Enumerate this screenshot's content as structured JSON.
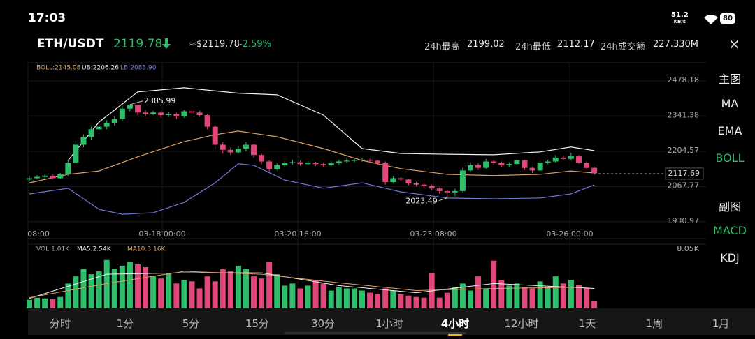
{
  "status": {
    "time": "17:03",
    "speed": "51.2",
    "speed_unit": "KB/s",
    "battery": "80"
  },
  "header": {
    "pair": "ETH/USDT",
    "price": "2119.78",
    "usd": "≈$2119.78",
    "change": "-2.59%",
    "stats": [
      {
        "label": "24h最高",
        "value": "2199.02"
      },
      {
        "label": "24h最低",
        "value": "2112.17"
      },
      {
        "label": "24h成交额",
        "value": "227.330M"
      }
    ]
  },
  "chart": {
    "boll_legend": [
      "BOLL:2145.08",
      "UB:2206.26",
      "LB:2083.90"
    ],
    "ylim": [
      1871,
      2559
    ],
    "yticks": [
      2478.18,
      2341.38,
      2204.57,
      2067.77,
      1930.97
    ],
    "last_price": 2117.69,
    "high_label": "2385.99",
    "high_value": 2385.99,
    "high_index": 13,
    "low_label": "2023.49",
    "low_value": 2023.49,
    "low_index": 54,
    "time_labels": [
      "08:00",
      "03-18 00:00",
      "03-20 16:00",
      "03-23 08:00",
      "03-26 00:00"
    ],
    "up_color": "#2ebd6b",
    "down_color": "#e0487a",
    "candles": [
      [
        2095,
        2110,
        2090,
        2100
      ],
      [
        2100,
        2112,
        2095,
        2105
      ],
      [
        2105,
        2115,
        2098,
        2110
      ],
      [
        2110,
        2115,
        2095,
        2100
      ],
      [
        2100,
        2120,
        2098,
        2115
      ],
      [
        2115,
        2170,
        2110,
        2160
      ],
      [
        2160,
        2240,
        2155,
        2230
      ],
      [
        2230,
        2270,
        2220,
        2260
      ],
      [
        2260,
        2300,
        2250,
        2290
      ],
      [
        2290,
        2310,
        2280,
        2300
      ],
      [
        2300,
        2325,
        2290,
        2315
      ],
      [
        2315,
        2340,
        2305,
        2330
      ],
      [
        2330,
        2380,
        2320,
        2370
      ],
      [
        2370,
        2386,
        2360,
        2385
      ],
      [
        2385,
        2386,
        2345,
        2355
      ],
      [
        2355,
        2365,
        2340,
        2350
      ],
      [
        2350,
        2362,
        2345,
        2355
      ],
      [
        2355,
        2360,
        2335,
        2345
      ],
      [
        2345,
        2358,
        2338,
        2350
      ],
      [
        2350,
        2355,
        2330,
        2340
      ],
      [
        2340,
        2365,
        2335,
        2360
      ],
      [
        2360,
        2368,
        2348,
        2355
      ],
      [
        2355,
        2362,
        2338,
        2345
      ],
      [
        2345,
        2350,
        2290,
        2300
      ],
      [
        2300,
        2305,
        2215,
        2230
      ],
      [
        2230,
        2240,
        2195,
        2210
      ],
      [
        2210,
        2220,
        2190,
        2200
      ],
      [
        2200,
        2225,
        2195,
        2215
      ],
      [
        2215,
        2240,
        2205,
        2230
      ],
      [
        2230,
        2232,
        2180,
        2190
      ],
      [
        2190,
        2195,
        2155,
        2165
      ],
      [
        2165,
        2170,
        2125,
        2135
      ],
      [
        2135,
        2158,
        2130,
        2150
      ],
      [
        2150,
        2165,
        2145,
        2160
      ],
      [
        2160,
        2170,
        2152,
        2162
      ],
      [
        2162,
        2168,
        2148,
        2155
      ],
      [
        2155,
        2166,
        2150,
        2160
      ],
      [
        2160,
        2164,
        2148,
        2155
      ],
      [
        2155,
        2160,
        2142,
        2150
      ],
      [
        2150,
        2165,
        2146,
        2158
      ],
      [
        2158,
        2172,
        2152,
        2165
      ],
      [
        2165,
        2175,
        2160,
        2168
      ],
      [
        2168,
        2176,
        2162,
        2170
      ],
      [
        2170,
        2178,
        2164,
        2172
      ],
      [
        2172,
        2175,
        2160,
        2168
      ],
      [
        2168,
        2172,
        2150,
        2160
      ],
      [
        2160,
        2165,
        2075,
        2085
      ],
      [
        2085,
        2108,
        2080,
        2100
      ],
      [
        2100,
        2105,
        2088,
        2095
      ],
      [
        2095,
        2098,
        2072,
        2080
      ],
      [
        2080,
        2085,
        2068,
        2075
      ],
      [
        2075,
        2082,
        2062,
        2070
      ],
      [
        2070,
        2074,
        2052,
        2060
      ],
      [
        2060,
        2064,
        2040,
        2050
      ],
      [
        2050,
        2055,
        2023,
        2045
      ],
      [
        2045,
        2060,
        2030,
        2050
      ],
      [
        2050,
        2140,
        2045,
        2130
      ],
      [
        2130,
        2160,
        2125,
        2150
      ],
      [
        2150,
        2158,
        2132,
        2140
      ],
      [
        2140,
        2175,
        2136,
        2165
      ],
      [
        2165,
        2170,
        2150,
        2160
      ],
      [
        2160,
        2165,
        2142,
        2150
      ],
      [
        2150,
        2162,
        2145,
        2155
      ],
      [
        2155,
        2178,
        2150,
        2170
      ],
      [
        2170,
        2172,
        2132,
        2140
      ],
      [
        2140,
        2145,
        2120,
        2130
      ],
      [
        2130,
        2165,
        2125,
        2160
      ],
      [
        2160,
        2172,
        2155,
        2165
      ],
      [
        2165,
        2190,
        2160,
        2180
      ],
      [
        2180,
        2188,
        2170,
        2175
      ],
      [
        2175,
        2199,
        2170,
        2185
      ],
      [
        2185,
        2190,
        2155,
        2160
      ],
      [
        2160,
        2165,
        2135,
        2140
      ],
      [
        2140,
        2145,
        2112,
        2120
      ]
    ],
    "bands": [
      {
        "color": "#f2f2f2",
        "index": [
          5,
          9,
          14,
          20,
          27,
          32,
          38,
          43,
          48,
          54,
          60,
          66,
          70,
          73
        ],
        "values": [
          2169,
          2318,
          2435,
          2451,
          2430,
          2424,
          2345,
          2215,
          2196,
          2193,
          2191,
          2202,
          2221,
          2207
        ]
      },
      {
        "color": "#e0a060",
        "index": [
          0,
          5,
          9,
          14,
          20,
          24,
          27,
          32,
          38,
          43,
          48,
          54,
          60,
          66,
          70,
          73
        ],
        "values": [
          2082,
          2115,
          2128,
          2183,
          2242,
          2269,
          2283,
          2261,
          2215,
          2169,
          2137,
          2115,
          2110,
          2115,
          2128,
          2120
        ]
      },
      {
        "color": "#6f78d8",
        "index": [
          0,
          5,
          9,
          12,
          16,
          20,
          24,
          27,
          29,
          33,
          38,
          43,
          48,
          54,
          60,
          66,
          70,
          73
        ],
        "values": [
          2039,
          2061,
          1979,
          1960,
          1966,
          2006,
          2082,
          2156,
          2150,
          2093,
          2061,
          2082,
          2047,
          2023,
          2020,
          2023,
          2039,
          2074
        ]
      }
    ],
    "vol_legend": [
      "VOL:1.01K",
      "MA5:2.54K",
      "MA10:3.16K"
    ],
    "vol_top_label": "8.05K",
    "vol_ylim": [
      0,
      8.05
    ],
    "volumes": [
      1.2,
      1.5,
      1.4,
      1.3,
      1.6,
      3.5,
      4.5,
      5.5,
      4.8,
      5.2,
      6.8,
      5.5,
      6.0,
      6.5,
      6.2,
      5.8,
      4.5,
      4.2,
      5.0,
      3.5,
      4.0,
      3.8,
      2.8,
      4.5,
      3.8,
      5.5,
      5.2,
      6.0,
      5.5,
      4.5,
      4.2,
      6.5,
      4.8,
      3.2,
      3.5,
      2.8,
      3.2,
      4.0,
      3.5,
      2.5,
      3.0,
      2.8,
      2.8,
      2.5,
      2.2,
      2.0,
      2.8,
      2.5,
      2.0,
      1.8,
      1.6,
      1.5,
      5.0,
      1.5,
      2.2,
      3.0,
      3.5,
      2.5,
      4.5,
      2.8,
      6.7,
      4.0,
      3.2,
      3.5,
      3.0,
      2.8,
      3.8,
      3.0,
      4.5,
      3.5,
      4.0,
      3.3,
      2.8,
      1.0
    ],
    "vol_lines": [
      {
        "color": "#f2f2f2",
        "index": [
          0,
          10,
          20,
          30,
          40,
          50,
          60,
          73
        ],
        "values": [
          1.4,
          4.8,
          5.0,
          5.0,
          3.2,
          2.2,
          3.5,
          2.8
        ]
      },
      {
        "color": "#e0a060",
        "index": [
          0,
          10,
          20,
          30,
          40,
          50,
          60,
          73
        ],
        "values": [
          1.5,
          3.5,
          5.2,
          4.8,
          3.6,
          2.5,
          2.8,
          3.0
        ]
      }
    ]
  },
  "side_menu": {
    "main_title": "主图",
    "main": [
      "MA",
      "EMA",
      "BOLL"
    ],
    "main_active": 2,
    "sub_title": "副图",
    "sub": [
      "MACD",
      "KDJ"
    ],
    "sub_active": 0
  },
  "timeframes": {
    "items": [
      "分时",
      "1分",
      "5分",
      "15分",
      "30分",
      "1小时",
      "4小时",
      "12小时",
      "1天",
      "1周",
      "1月"
    ],
    "active": 6
  }
}
